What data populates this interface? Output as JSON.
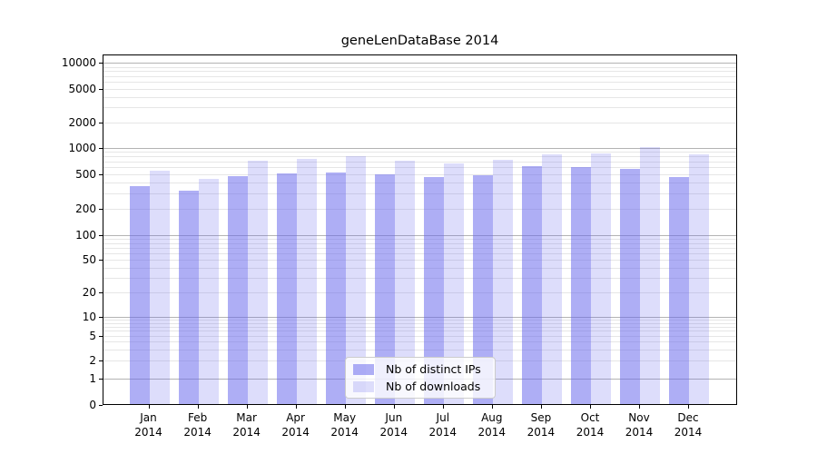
{
  "chart_data": {
    "type": "bar",
    "title": "geneLenDataBase 2014",
    "categories": [
      "Jan",
      "Feb",
      "Mar",
      "Apr",
      "May",
      "Jun",
      "Jul",
      "Aug",
      "Sep",
      "Oct",
      "Nov",
      "Dec"
    ],
    "category_year": "2014",
    "series": [
      {
        "name": "Nb of distinct IPs",
        "color": "rgba(100,100,235,0.52)",
        "values": [
          370,
          325,
          480,
          510,
          520,
          505,
          465,
          490,
          615,
          600,
          575,
          465
        ]
      },
      {
        "name": "Nb of downloads",
        "color": "rgba(100,100,235,0.22)",
        "values": [
          555,
          445,
          715,
          750,
          815,
          710,
          665,
          730,
          845,
          865,
          1020,
          840
        ]
      }
    ],
    "xlabel": "",
    "ylabel": "",
    "y_axis": {
      "scale": "symlog",
      "ticks": [
        0,
        1,
        2,
        5,
        10,
        20,
        50,
        100,
        200,
        500,
        1000,
        2000,
        5000,
        10000
      ],
      "ylim": [
        0,
        12500
      ]
    },
    "grid": "on",
    "legend_position": "lower-center"
  },
  "colors": {
    "bar_distinct_ips": "rgba(100,100,235,0.52)",
    "bar_downloads": "rgba(100,100,235,0.22)",
    "grid_major": "#b3b3b3",
    "grid_minor": "#e6e6e6",
    "axis": "#000000",
    "text": "#000000",
    "legend_border": "#cccccc",
    "legend_background": "rgba(255,255,255,0.8)"
  }
}
